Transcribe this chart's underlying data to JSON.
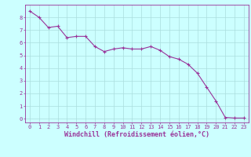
{
  "x": [
    0,
    1,
    2,
    3,
    4,
    5,
    6,
    7,
    8,
    9,
    10,
    11,
    12,
    13,
    14,
    15,
    16,
    17,
    18,
    19,
    20,
    21,
    22,
    23
  ],
  "y": [
    8.5,
    8.0,
    7.2,
    7.3,
    6.4,
    6.5,
    6.5,
    5.7,
    5.3,
    5.5,
    5.6,
    5.5,
    5.5,
    5.7,
    5.4,
    4.9,
    4.7,
    4.3,
    3.6,
    2.5,
    1.4,
    0.1,
    0.05,
    0.05
  ],
  "line_color": "#993399",
  "marker": "+",
  "bg_color": "#ccffff",
  "grid_color": "#aadddd",
  "xlabel": "Windchill (Refroidissement éolien,°C)",
  "xlabel_color": "#993399",
  "tick_color": "#993399",
  "ylim": [
    -0.3,
    9.0
  ],
  "xlim": [
    -0.5,
    23.5
  ],
  "yticks": [
    0,
    1,
    2,
    3,
    4,
    5,
    6,
    7,
    8
  ],
  "xticks": [
    0,
    1,
    2,
    3,
    4,
    5,
    6,
    7,
    8,
    9,
    10,
    11,
    12,
    13,
    14,
    15,
    16,
    17,
    18,
    19,
    20,
    21,
    22,
    23
  ],
  "tick_fontsize": 5.0,
  "xlabel_fontsize": 6.0,
  "linewidth": 0.8,
  "markersize": 3.0
}
